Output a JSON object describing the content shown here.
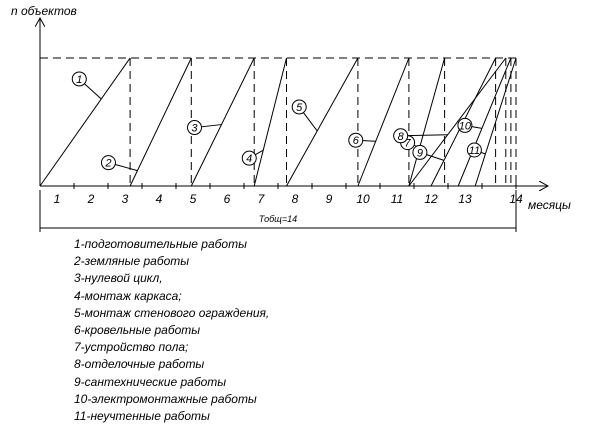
{
  "chart_data": {
    "type": "line",
    "y_axis_label": "n объектов",
    "x_axis_label": "месяцы",
    "x_ticks": [
      "1",
      "2",
      "3",
      "4",
      "5",
      "6",
      "7",
      "8",
      "9",
      "10",
      "11",
      "12",
      "13",
      "14"
    ],
    "x_range": [
      0,
      14
    ],
    "total_label": "Тобщ=14",
    "series": [
      {
        "name": "1",
        "x": [
          0,
          2.65
        ]
      },
      {
        "name": "2",
        "x": [
          2.65,
          4.45
        ]
      },
      {
        "name": "3",
        "x": [
          4.45,
          6.3
        ]
      },
      {
        "name": "4",
        "x": [
          6.3,
          7.25
        ]
      },
      {
        "name": "5",
        "x": [
          7.25,
          9.35
        ]
      },
      {
        "name": "6",
        "x": [
          9.35,
          10.85
        ]
      },
      {
        "name": "7",
        "x": [
          10.85,
          11.9
        ]
      },
      {
        "name": "8",
        "x": [
          10.85,
          13.7
        ]
      },
      {
        "name": "9",
        "x": [
          11.5,
          13.4
        ]
      },
      {
        "name": "10",
        "x": [
          12.3,
          13.85
        ]
      },
      {
        "name": "11",
        "x": [
          12.8,
          14
        ]
      }
    ],
    "series_line_color": "#000000"
  },
  "legend": [
    "1-подготовительные работы",
    "2-земляные работы",
    "3-нулевой цикл,",
    "4-монтаж каркаса;",
    "5-монтаж стенового ограждения,",
    "6-кровельные работы",
    "7-устройство пола;",
    "8-отделочные работы",
    "9-сантехнические работы",
    "10-электромонтажные работы",
    "11-неучтенные работы"
  ]
}
